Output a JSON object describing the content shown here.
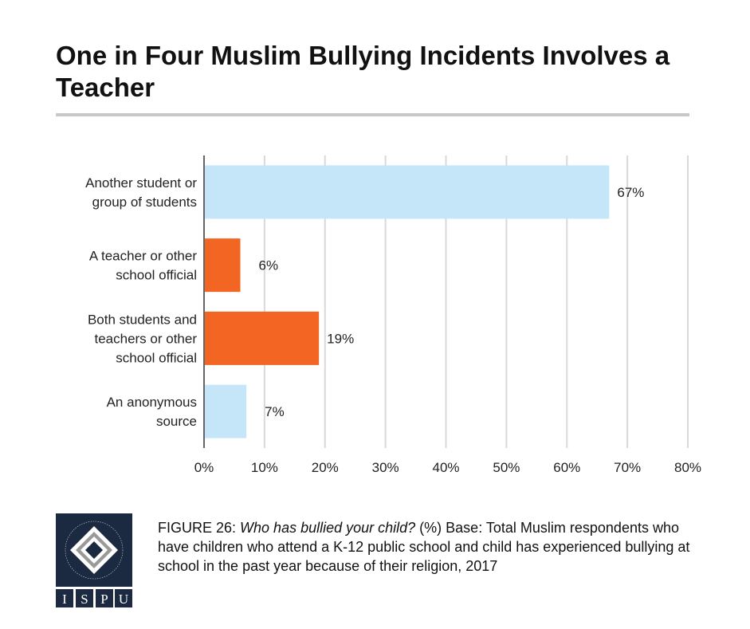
{
  "title": "One in Four Muslim Bullying Incidents Involves a Teacher",
  "logo": {
    "text": "ISPU",
    "ring_text": "INSTITUTE FOR SOCIAL POLICY AND UNDERSTANDING",
    "bg": "#1b2a40"
  },
  "caption": {
    "figure": "FIGURE 26",
    "question": "Who has bullied your child?",
    "rest": " (%) Base: Total Muslim respondents who have children who attend a K-12 public school and child has experienced bullying at school in the past year because of their religion, 2017"
  },
  "chart_data": {
    "type": "bar",
    "orientation": "horizontal",
    "categories": [
      [
        "Another student or",
        "group of students"
      ],
      [
        "A teacher or other",
        "school official"
      ],
      [
        "Both students and",
        "teachers or other",
        "school official"
      ],
      [
        "An anonymous",
        "source"
      ]
    ],
    "values": [
      67,
      6,
      19,
      7
    ],
    "data_labels": [
      "67%",
      "6%",
      "19%",
      "7%"
    ],
    "colors": [
      "#c5e6f8",
      "#f26522",
      "#f26522",
      "#c5e6f8"
    ],
    "xlim": [
      0,
      80
    ],
    "xticks": [
      0,
      10,
      20,
      30,
      40,
      50,
      60,
      70,
      80
    ],
    "xtick_labels": [
      "0%",
      "10%",
      "20%",
      "30%",
      "40%",
      "50%",
      "60%",
      "70%",
      "80%"
    ],
    "grid": true
  }
}
